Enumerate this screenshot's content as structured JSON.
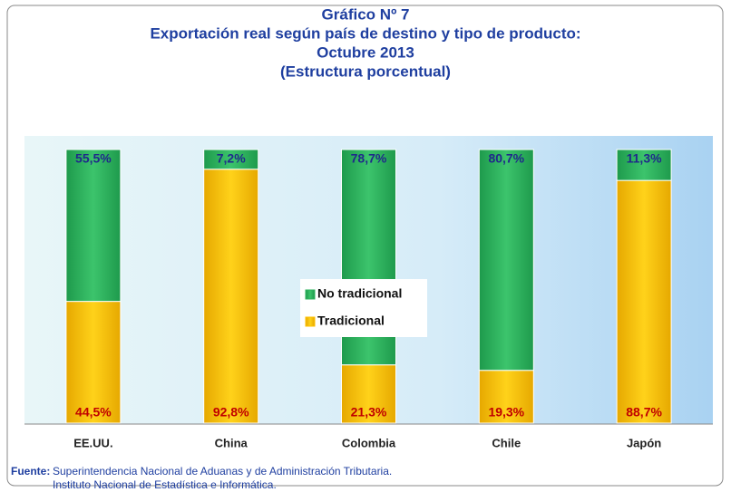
{
  "chart_data": {
    "type": "stacked_bar",
    "title": [
      "Gráfico Nº 7",
      "Exportación real según país de destino y tipo de producto:",
      "Octubre 2013",
      "(Estructura porcentual)"
    ],
    "categories": [
      "EE.UU.",
      "China",
      "Colombia",
      "Chile",
      "Japón"
    ],
    "series": [
      {
        "name": "Tradicional",
        "color": "#ffc000",
        "values": [
          44.5,
          92.8,
          21.3,
          19.3,
          88.7
        ],
        "value_labels": [
          "44,5%",
          "92,8%",
          "21,3%",
          "19,3%",
          "88,7%"
        ]
      },
      {
        "name": "No tradicional",
        "color": "#2db25e",
        "values": [
          55.5,
          7.2,
          78.7,
          80.7,
          11.3
        ],
        "value_labels": [
          "55,5%",
          "7,2%",
          "78,7%",
          "80,7%",
          "11,3%"
        ]
      }
    ],
    "ylim": [
      0,
      100
    ],
    "source_label": "Fuente:",
    "source": [
      "Superintendencia Nacional de Aduanas y de Administración Tributaria.",
      "Instituto Nacional de Estadística e Informática."
    ]
  }
}
